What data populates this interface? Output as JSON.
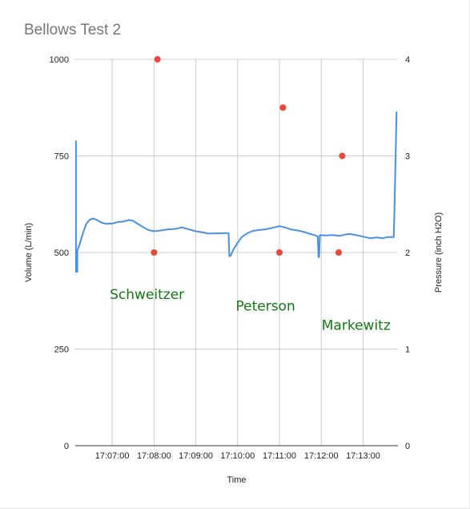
{
  "chart_data": {
    "type": "line",
    "title": "Bellows Test 2",
    "xlabel": "Time",
    "ylabel": "Volume (L/min)",
    "y2label": "Pressure (inch H2O)",
    "ylim": [
      0,
      1000
    ],
    "y2lim": [
      0,
      4
    ],
    "yticks": [
      0,
      250,
      500,
      750,
      1000
    ],
    "y2ticks": [
      0,
      1,
      2,
      3,
      4
    ],
    "xlim": [
      "17:06:07",
      "17:13:50"
    ],
    "xticks": [
      "17:07:00",
      "17:08:00",
      "17:09:00",
      "17:10:00",
      "17:11:00",
      "17:12:00",
      "17:13:00"
    ],
    "grid": true,
    "series": [
      {
        "axis": "left",
        "color": "#4a90e2",
        "style": "line",
        "points": [
          [
            "17:06:08",
            790
          ],
          [
            "17:06:08",
            450
          ],
          [
            "17:06:10",
            450
          ],
          [
            "17:06:10",
            505
          ],
          [
            "17:06:13",
            520
          ],
          [
            "17:06:18",
            550
          ],
          [
            "17:06:23",
            575
          ],
          [
            "17:06:28",
            585
          ],
          [
            "17:06:33",
            588
          ],
          [
            "17:06:38",
            584
          ],
          [
            "17:06:45",
            577
          ],
          [
            "17:06:52",
            574
          ],
          [
            "17:07:00",
            575
          ],
          [
            "17:07:08",
            579
          ],
          [
            "17:07:16",
            580
          ],
          [
            "17:07:24",
            584
          ],
          [
            "17:07:30",
            582
          ],
          [
            "17:07:36",
            575
          ],
          [
            "17:07:44",
            566
          ],
          [
            "17:07:52",
            558
          ],
          [
            "17:08:00",
            555
          ],
          [
            "17:08:10",
            557
          ],
          [
            "17:08:20",
            560
          ],
          [
            "17:08:30",
            561
          ],
          [
            "17:08:40",
            565
          ],
          [
            "17:08:50",
            560
          ],
          [
            "17:09:00",
            555
          ],
          [
            "17:09:10",
            552
          ],
          [
            "17:09:18",
            549
          ],
          [
            "17:09:40",
            550
          ],
          [
            "17:09:47",
            550
          ],
          [
            "17:09:48",
            490
          ],
          [
            "17:09:50",
            492
          ],
          [
            "17:09:54",
            508
          ],
          [
            "17:10:00",
            525
          ],
          [
            "17:10:06",
            540
          ],
          [
            "17:10:14",
            550
          ],
          [
            "17:10:22",
            556
          ],
          [
            "17:10:30",
            558
          ],
          [
            "17:10:40",
            560
          ],
          [
            "17:10:50",
            564
          ],
          [
            "17:11:00",
            568
          ],
          [
            "17:11:08",
            565
          ],
          [
            "17:11:16",
            560
          ],
          [
            "17:11:26",
            557
          ],
          [
            "17:11:36",
            553
          ],
          [
            "17:11:44",
            548
          ],
          [
            "17:11:50",
            545
          ],
          [
            "17:11:55",
            542
          ],
          [
            "17:11:56",
            488
          ],
          [
            "17:11:57",
            488
          ],
          [
            "17:11:58",
            545
          ],
          [
            "17:12:06",
            544
          ],
          [
            "17:12:16",
            545
          ],
          [
            "17:12:26",
            543
          ],
          [
            "17:12:36",
            547
          ],
          [
            "17:12:42",
            548
          ],
          [
            "17:12:50",
            545
          ],
          [
            "17:13:00",
            541
          ],
          [
            "17:13:10",
            537
          ],
          [
            "17:13:20",
            539
          ],
          [
            "17:13:28",
            537
          ],
          [
            "17:13:36",
            540
          ],
          [
            "17:13:44",
            540
          ],
          [
            "17:13:45",
            605
          ],
          [
            "17:13:48",
            865
          ]
        ]
      },
      {
        "axis": "right",
        "color": "#e8483b",
        "style": "scatter",
        "points": [
          [
            "17:08:00",
            2.0
          ],
          [
            "17:08:05",
            4.0
          ],
          [
            "17:11:00",
            2.0
          ],
          [
            "17:11:05",
            3.5
          ],
          [
            "17:12:25",
            2.0
          ],
          [
            "17:12:30",
            3.0
          ]
        ]
      }
    ],
    "annotations": [
      {
        "text": "Schweitzer",
        "x": "17:07:50",
        "y": 380
      },
      {
        "text": "Peterson",
        "x": "17:10:40",
        "y": 350
      },
      {
        "text": "Markewitz",
        "x": "17:12:50",
        "y": 300
      }
    ]
  }
}
